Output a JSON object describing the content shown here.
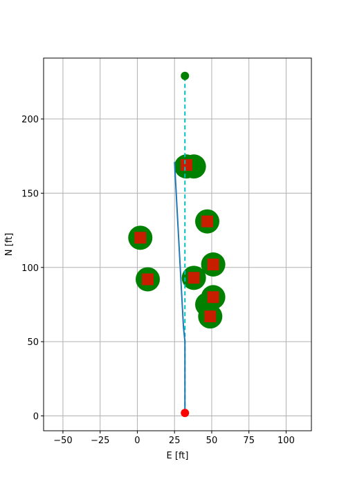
{
  "chart_data": {
    "type": "scatter",
    "title": "",
    "xlabel": "E [ft]",
    "ylabel": "N [ft]",
    "xlim": [
      -63,
      117
    ],
    "ylim": [
      -10,
      241
    ],
    "xticks": [
      -50,
      -25,
      0,
      25,
      50,
      75,
      100
    ],
    "yticks": [
      0,
      50,
      100,
      150,
      200
    ],
    "xtick_labels": [
      "−50",
      "−25",
      "0",
      "25",
      "50",
      "75",
      "100"
    ],
    "ytick_labels": [
      "0",
      "50",
      "100",
      "150",
      "200"
    ],
    "grid": true,
    "colors": {
      "obstacle": "#008000",
      "marker": "#c81e00",
      "start": "#ff0000",
      "goal": "#008000",
      "planned_path": "#00bfbf",
      "actual_path": "#1f77b4",
      "grid": "#b0b0b0"
    },
    "obstacles": [
      {
        "x": 33,
        "y": 168
      },
      {
        "x": 38,
        "y": 168
      },
      {
        "x": 47,
        "y": 131
      },
      {
        "x": 2,
        "y": 120
      },
      {
        "x": 51,
        "y": 102
      },
      {
        "x": 7,
        "y": 92
      },
      {
        "x": 38,
        "y": 93
      },
      {
        "x": 47,
        "y": 75
      },
      {
        "x": 51,
        "y": 80
      },
      {
        "x": 49,
        "y": 67
      }
    ],
    "markers": [
      {
        "x": 33,
        "y": 169
      },
      {
        "x": 47,
        "y": 131
      },
      {
        "x": 2,
        "y": 120
      },
      {
        "x": 51,
        "y": 102
      },
      {
        "x": 7,
        "y": 92
      },
      {
        "x": 38,
        "y": 93
      },
      {
        "x": 51,
        "y": 80
      },
      {
        "x": 49,
        "y": 67
      }
    ],
    "series": [
      {
        "style": "dashed",
        "color_key": "planned_path",
        "x": [
          32,
          32
        ],
        "y": [
          2,
          229
        ]
      },
      {
        "style": "solid",
        "color_key": "actual_path",
        "x": [
          32,
          32,
          31,
          25
        ],
        "y": [
          2,
          50,
          60,
          171
        ]
      }
    ],
    "start": {
      "x": 32,
      "y": 2
    },
    "goal": {
      "x": 32,
      "y": 229
    }
  }
}
